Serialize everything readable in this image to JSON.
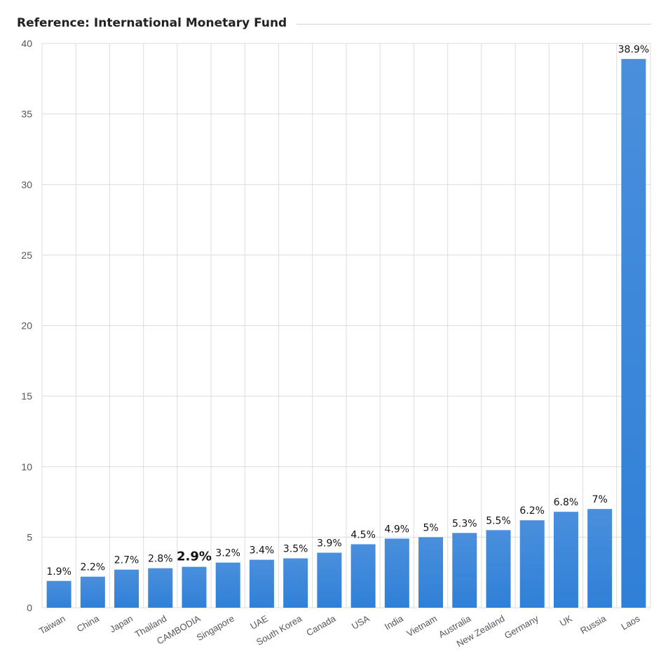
{
  "title": "Reference: International Monetary Fund",
  "colors": {
    "bar": "#2f80d8",
    "bar_top": "#4a8fdc",
    "grid": "#dcdcdc",
    "axis_text": "#555555",
    "label_text": "#111111"
  },
  "chart_data": {
    "type": "bar",
    "categories": [
      "Taiwan",
      "China",
      "Japan",
      "Thailand",
      "CAMBODIA",
      "Singapore",
      "UAE",
      "South Korea",
      "Canada",
      "USA",
      "India",
      "Vietnam",
      "Australia",
      "New Zealand",
      "Germany",
      "UK",
      "Russia",
      "Laos"
    ],
    "values": [
      1.9,
      2.2,
      2.7,
      2.8,
      2.9,
      3.2,
      3.4,
      3.5,
      3.9,
      4.5,
      4.9,
      5,
      5.3,
      5.5,
      6.2,
      6.8,
      7,
      38.9
    ],
    "data_labels": [
      "1.9%",
      "2.2%",
      "2.7%",
      "2.8%",
      "2.9%",
      "3.2%",
      "3.4%",
      "3.5%",
      "3.9%",
      "4.5%",
      "4.9%",
      "5%",
      "5.3%",
      "5.5%",
      "6.2%",
      "6.8%",
      "7%",
      "38.9%"
    ],
    "highlight_category": "CAMBODIA",
    "yticks": [
      0,
      5,
      10,
      15,
      20,
      25,
      30,
      35,
      40
    ],
    "ylim": [
      0,
      40
    ],
    "grid": true,
    "legend": "none"
  }
}
